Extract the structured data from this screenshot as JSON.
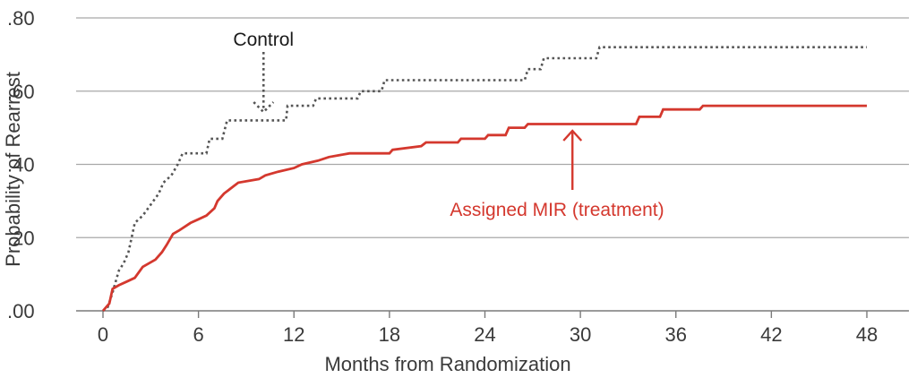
{
  "chart_data": {
    "type": "line",
    "line_style": "step",
    "title": "",
    "xlabel": "Months from Randomization",
    "ylabel": "Probability of Rearrest",
    "xlim": [
      0,
      48
    ],
    "ylim": [
      0,
      0.8
    ],
    "x_ticks": [
      0,
      6,
      12,
      18,
      24,
      30,
      36,
      42,
      48
    ],
    "x_tick_labels": [
      "0",
      "6",
      "12",
      "18",
      "24",
      "30",
      "36",
      "42",
      "48"
    ],
    "y_ticks": [
      0,
      0.2,
      0.4,
      0.6,
      0.8
    ],
    "y_tick_labels": [
      ".00",
      ".20",
      ".40",
      ".60",
      ".80"
    ],
    "grid": "horizontal",
    "legend": "none",
    "series": [
      {
        "name": "Control",
        "color": "#555555",
        "style": "dotted",
        "points": [
          [
            0,
            0
          ],
          [
            0.3,
            0.01
          ],
          [
            0.6,
            0.05
          ],
          [
            0.8,
            0.08
          ],
          [
            1.0,
            0.11
          ],
          [
            1.3,
            0.13
          ],
          [
            1.6,
            0.16
          ],
          [
            1.8,
            0.2
          ],
          [
            2.0,
            0.24
          ],
          [
            2.5,
            0.26
          ],
          [
            3.0,
            0.29
          ],
          [
            3.5,
            0.32
          ],
          [
            3.8,
            0.35
          ],
          [
            4.3,
            0.37
          ],
          [
            4.7,
            0.4
          ],
          [
            5.0,
            0.43
          ],
          [
            6.5,
            0.43
          ],
          [
            6.7,
            0.47
          ],
          [
            7.5,
            0.47
          ],
          [
            7.8,
            0.52
          ],
          [
            11.5,
            0.52
          ],
          [
            11.6,
            0.56
          ],
          [
            13.2,
            0.56
          ],
          [
            13.4,
            0.58
          ],
          [
            16.0,
            0.58
          ],
          [
            16.2,
            0.6
          ],
          [
            17.5,
            0.6
          ],
          [
            17.7,
            0.63
          ],
          [
            26.5,
            0.63
          ],
          [
            26.7,
            0.66
          ],
          [
            27.5,
            0.66
          ],
          [
            27.7,
            0.69
          ],
          [
            31.0,
            0.69
          ],
          [
            31.2,
            0.72
          ],
          [
            48,
            0.72
          ]
        ]
      },
      {
        "name": "Assigned MIR (treatment)",
        "color": "#d4382e",
        "style": "solid",
        "points": [
          [
            0,
            0
          ],
          [
            0.4,
            0.02
          ],
          [
            0.6,
            0.06
          ],
          [
            1.0,
            0.07
          ],
          [
            1.5,
            0.08
          ],
          [
            2.0,
            0.09
          ],
          [
            2.5,
            0.12
          ],
          [
            3.3,
            0.14
          ],
          [
            3.7,
            0.16
          ],
          [
            4.0,
            0.18
          ],
          [
            4.4,
            0.21
          ],
          [
            4.8,
            0.22
          ],
          [
            5.5,
            0.24
          ],
          [
            6.0,
            0.25
          ],
          [
            6.5,
            0.26
          ],
          [
            7.0,
            0.28
          ],
          [
            7.2,
            0.3
          ],
          [
            7.6,
            0.32
          ],
          [
            8.2,
            0.34
          ],
          [
            8.5,
            0.35
          ],
          [
            9.8,
            0.36
          ],
          [
            10.2,
            0.37
          ],
          [
            11.0,
            0.38
          ],
          [
            12.0,
            0.39
          ],
          [
            12.5,
            0.4
          ],
          [
            13.5,
            0.41
          ],
          [
            14.2,
            0.42
          ],
          [
            15.5,
            0.43
          ],
          [
            18.0,
            0.43
          ],
          [
            18.2,
            0.44
          ],
          [
            20.0,
            0.45
          ],
          [
            20.3,
            0.46
          ],
          [
            22.3,
            0.46
          ],
          [
            22.5,
            0.47
          ],
          [
            24.0,
            0.47
          ],
          [
            24.2,
            0.48
          ],
          [
            25.3,
            0.48
          ],
          [
            25.5,
            0.5
          ],
          [
            26.5,
            0.5
          ],
          [
            26.7,
            0.51
          ],
          [
            33.5,
            0.51
          ],
          [
            33.7,
            0.53
          ],
          [
            35.0,
            0.53
          ],
          [
            35.2,
            0.55
          ],
          [
            37.5,
            0.55
          ],
          [
            37.7,
            0.56
          ],
          [
            48,
            0.56
          ]
        ]
      }
    ],
    "annotations": [
      {
        "text": "Control",
        "color": "#1a1a1a",
        "arrow": "dotted",
        "points_to": [
          10.2,
          0.53
        ]
      },
      {
        "text": "Assigned MIR (treatment)",
        "color": "#d4382e",
        "arrow": "solid",
        "points_to": [
          29.5,
          0.51
        ]
      }
    ]
  }
}
